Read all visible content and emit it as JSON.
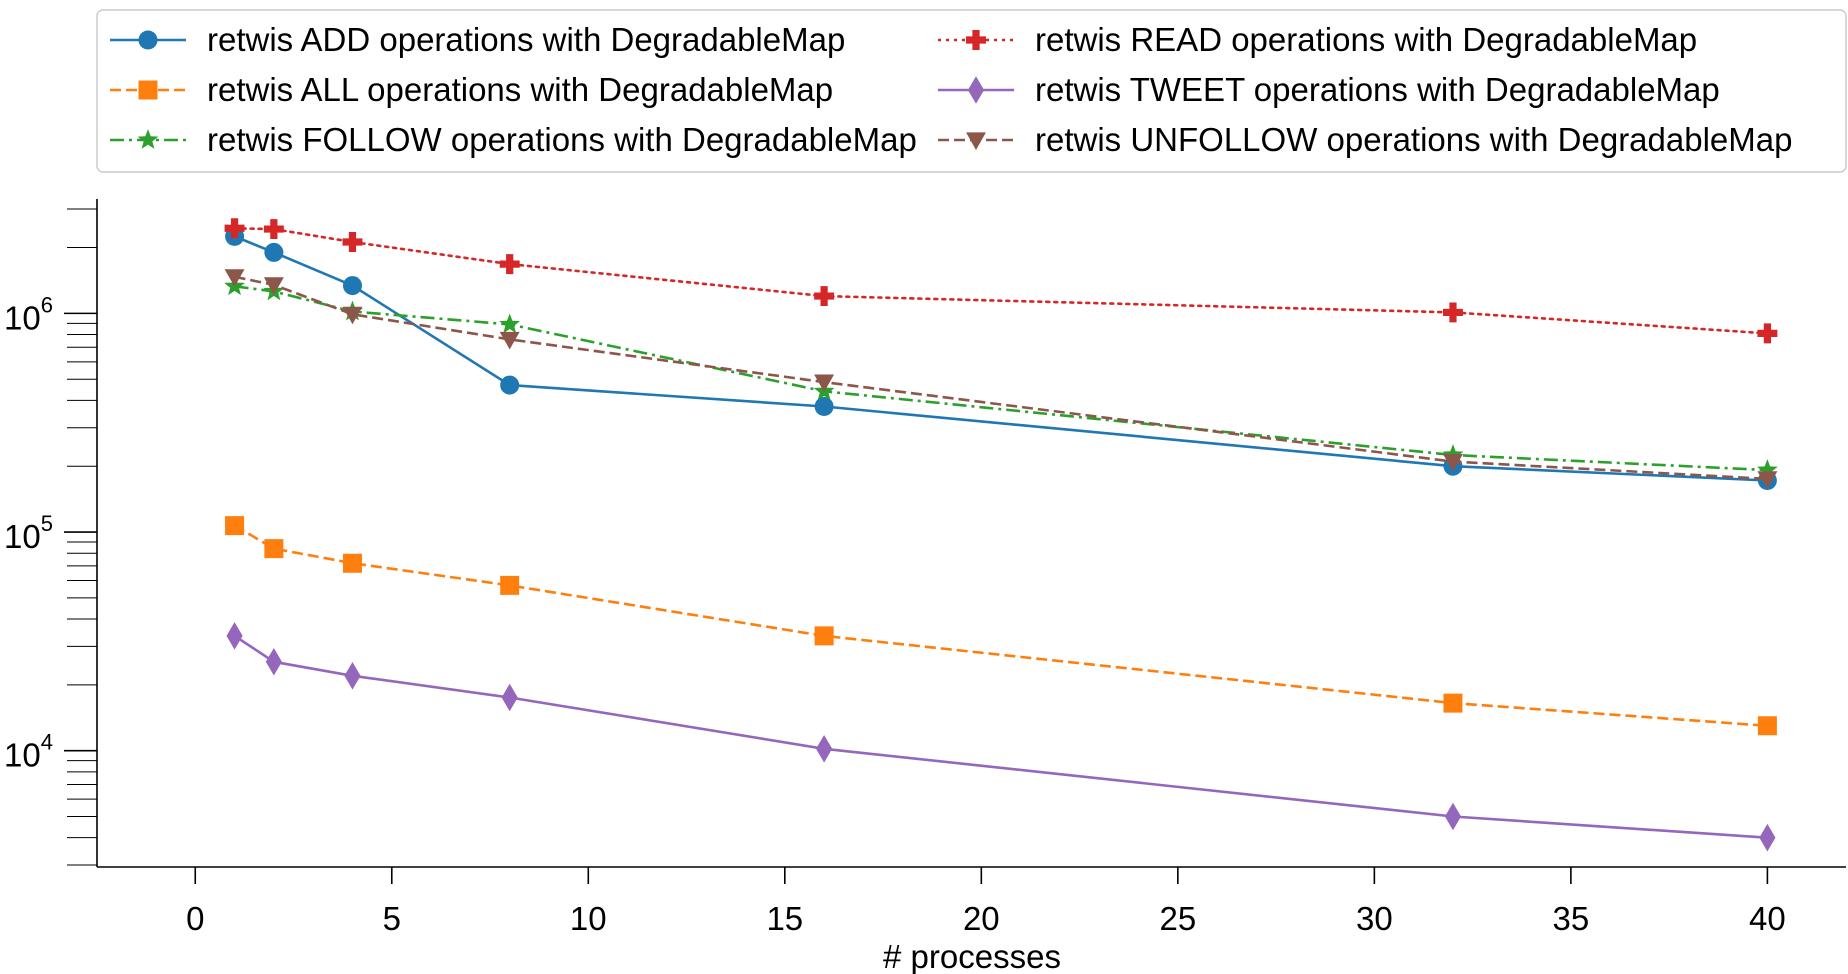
{
  "chart_data": {
    "type": "line",
    "title": "",
    "xlabel": "# processes",
    "ylabel": "",
    "yscale": "log",
    "xlim": [
      -2.5,
      42
    ],
    "ylim": [
      3000,
      3300000
    ],
    "x_ticks": [
      0,
      5,
      10,
      15,
      20,
      25,
      30,
      35,
      40
    ],
    "x_tick_labels": [
      "0",
      "5",
      "10",
      "15",
      "20",
      "25",
      "30",
      "35",
      "40"
    ],
    "y_ticks": [
      {
        "value": 10000,
        "base": "10",
        "exp": "4"
      },
      {
        "value": 100000,
        "base": "10",
        "exp": "5"
      },
      {
        "value": 1000000,
        "base": "10",
        "exp": "6"
      }
    ],
    "grid": false,
    "legend_position": "top",
    "x": [
      1,
      2,
      4,
      8,
      16,
      32,
      40
    ],
    "series": [
      {
        "name": "retwis ADD operations with DegradableMap",
        "color": "#1f77b4",
        "dash": "solid",
        "marker": "circle",
        "values": [
          2250000,
          1900000,
          1340000,
          470000,
          375000,
          200000,
          172000
        ]
      },
      {
        "name": "retwis ALL operations with DegradableMap",
        "color": "#ff7f0e",
        "dash": "dashed",
        "marker": "square",
        "values": [
          107000,
          84000,
          72000,
          57000,
          33500,
          16500,
          13000
        ]
      },
      {
        "name": "retwis FOLLOW operations with DegradableMap",
        "color": "#2ca02c",
        "dash": "dashdot",
        "marker": "star",
        "values": [
          1330000,
          1260000,
          1020000,
          890000,
          440000,
          225000,
          192000
        ]
      },
      {
        "name": "retwis READ operations with DegradableMap",
        "color": "#d62728",
        "dash": "dotted",
        "marker": "plus",
        "values": [
          2450000,
          2430000,
          2120000,
          1680000,
          1200000,
          1010000,
          810000
        ]
      },
      {
        "name": "retwis TWEET operations with DegradableMap",
        "color": "#9467bd",
        "dash": "solid",
        "marker": "diamond",
        "values": [
          33500,
          25500,
          22000,
          17500,
          10200,
          5000,
          4000
        ]
      },
      {
        "name": "retwis UNFOLLOW operations with DegradableMap",
        "color": "#8c564b",
        "dash": "dashed",
        "marker": "triangle-down",
        "values": [
          1470000,
          1350000,
          990000,
          760000,
          485000,
          210000,
          175000
        ]
      }
    ]
  }
}
